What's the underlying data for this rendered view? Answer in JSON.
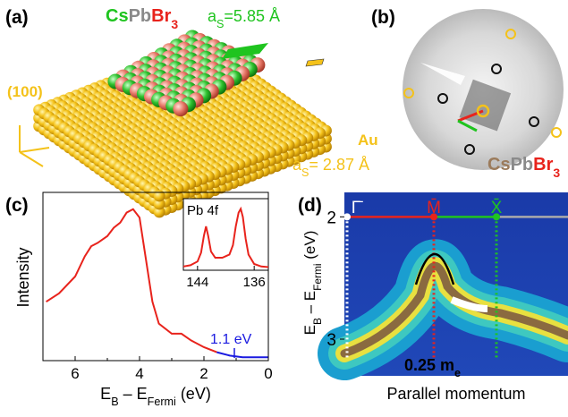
{
  "panel_a": {
    "label": "(a)",
    "compound": [
      {
        "text": "Cs",
        "color": "#1fc41f"
      },
      {
        "text": "Pb",
        "color": "#8a8a8a"
      },
      {
        "text": "Br",
        "color": "#e8231c"
      },
      {
        "text": "3",
        "color": "#e8231c",
        "sub": true
      }
    ],
    "lattice_top": [
      "a",
      "S",
      "=5.85 Å"
    ],
    "facet": "(100)",
    "substrate": "Au",
    "lattice_bottom": [
      "a",
      "S",
      "= 2.87 Å"
    ]
  },
  "panel_b": {
    "label": "(b)",
    "compound": [
      {
        "text": "Cs",
        "color": "#9b7b5b"
      },
      {
        "text": "Pb",
        "color": "#8a8a8a"
      },
      {
        "text": "Br",
        "color": "#e8231c"
      },
      {
        "text": "3",
        "color": "#e8231c",
        "sub": true
      }
    ]
  },
  "chart_data": [
    {
      "type": "line",
      "label": "(c)",
      "ylabel": "Intensity",
      "xlabel": [
        "E",
        "B",
        " – E",
        "Fermi",
        " (eV)"
      ],
      "xlim": [
        7,
        0
      ],
      "ylim": [
        0,
        1
      ],
      "xticks": [
        6,
        4,
        2,
        0
      ],
      "annotation": "1.1 eV",
      "series": [
        {
          "color": "#e8231c",
          "x": [
            6.9,
            6.5,
            6.0,
            5.7,
            5.5,
            5.3,
            5.0,
            4.8,
            4.6,
            4.4,
            4.2,
            4.0,
            3.8,
            3.6,
            3.4,
            3.0,
            2.7,
            2.4,
            2.0,
            1.6
          ],
          "values": [
            0.35,
            0.4,
            0.5,
            0.62,
            0.68,
            0.7,
            0.74,
            0.79,
            0.82,
            0.88,
            0.9,
            0.85,
            0.6,
            0.35,
            0.22,
            0.16,
            0.16,
            0.12,
            0.08,
            0.05
          ]
        },
        {
          "color": "#1a1ae0",
          "x": [
            1.6,
            1.2,
            0.8,
            0.4,
            0.0
          ],
          "values": [
            0.05,
            0.03,
            0.02,
            0.02,
            0.02
          ]
        }
      ]
    },
    {
      "type": "line",
      "title": "Pb 4f",
      "xlim": [
        146,
        134
      ],
      "ylim": [
        0,
        1
      ],
      "xticks": [
        144,
        136
      ],
      "series": [
        {
          "color": "#e8231c",
          "x": [
            146,
            145,
            144,
            143.5,
            143.1,
            142.8,
            142.5,
            142.1,
            141.5,
            140.5,
            139.5,
            139,
            138.6,
            138.2,
            137.9,
            137.6,
            137.2,
            136.8,
            136,
            135,
            134
          ],
          "values": [
            0.06,
            0.08,
            0.14,
            0.28,
            0.55,
            0.7,
            0.55,
            0.3,
            0.2,
            0.2,
            0.25,
            0.4,
            0.7,
            0.92,
            0.98,
            0.85,
            0.5,
            0.25,
            0.1,
            0.06,
            0.05
          ]
        }
      ]
    },
    {
      "type": "image",
      "label": "(d)",
      "ylabel": [
        "E",
        "B",
        " – E",
        "Fermi",
        " (eV)"
      ],
      "xlabel": "Parallel momentum",
      "ylim": [
        1.8,
        3.3
      ],
      "yticks": [
        2,
        3
      ],
      "points": [
        "Γ̄",
        "M̄",
        "X̄"
      ],
      "fit": [
        "0.25 m",
        "e"
      ]
    }
  ]
}
